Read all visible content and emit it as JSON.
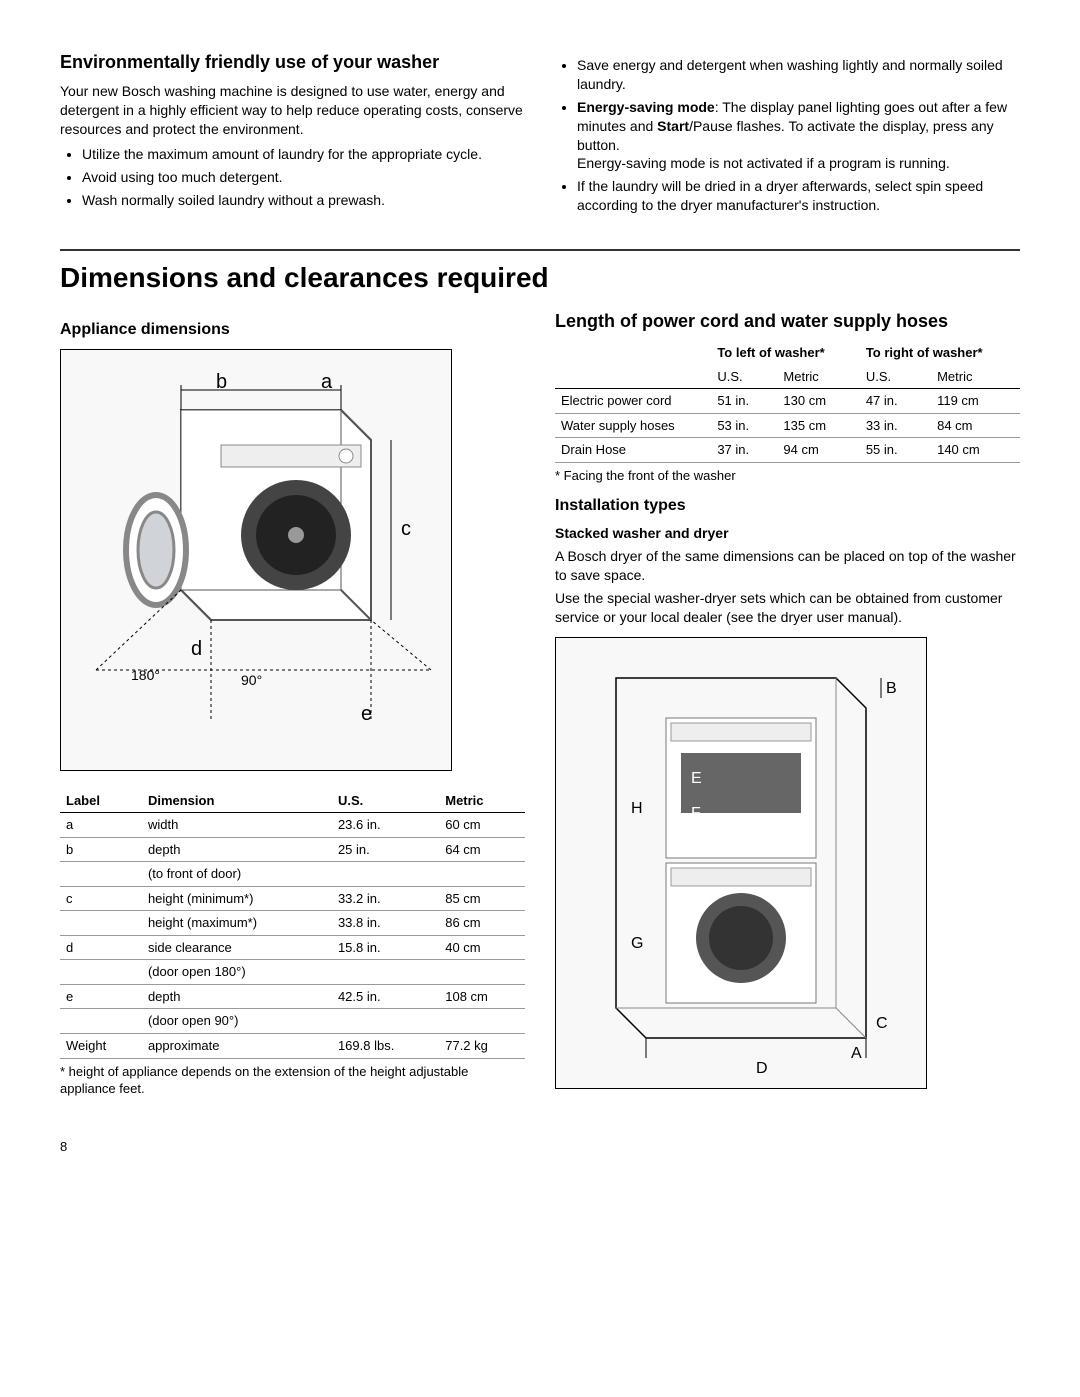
{
  "intro": {
    "heading": "Environmentally friendly use of your washer",
    "para": "Your new Bosch washing machine is designed to use water, energy and detergent in a highly efficient way to help reduce operating costs, conserve resources and protect the environment.",
    "bullets": [
      "Utilize the maximum amount of laundry for the appropriate cycle.",
      "Avoid using too much detergent.",
      "Wash normally soiled laundry without a prewash."
    ]
  },
  "intro_right": {
    "b1": "Save energy and detergent when washing lightly and normally soiled laundry.",
    "b2a": "Energy-saving mode",
    "b2b": ": The display panel lighting goes out after a few minutes and ",
    "b2c": "Start",
    "b2d": "/Pause flashes. To activate the display, press any button.",
    "b2e": "Energy-saving mode is not activated if a program is running.",
    "b3": "If the laundry will be dried in a dryer afterwards, select spin speed according to the dryer manufacturer's instruction."
  },
  "main_heading": "Dimensions and clearances required",
  "appliance": {
    "heading": "Appliance dimensions",
    "labels": {
      "a": "a",
      "b": "b",
      "c": "c",
      "d": "d",
      "e": "e",
      "a180": "180°",
      "a90": "90°"
    }
  },
  "dims_table": {
    "columns": [
      "Label",
      "Dimension",
      "U.S.",
      "Metric"
    ],
    "rows": [
      [
        "a",
        "width",
        "23.6 in.",
        "60 cm"
      ],
      [
        "b",
        "depth",
        "25 in.",
        "64 cm"
      ],
      [
        "",
        "(to front of door)",
        "",
        ""
      ],
      [
        "c",
        "height (minimum*)",
        "33.2 in.",
        "85 cm"
      ],
      [
        "",
        "height (maximum*)",
        "33.8 in.",
        "86 cm"
      ],
      [
        "d",
        "side clearance",
        "15.8 in.",
        "40 cm"
      ],
      [
        "",
        "(door open 180°)",
        "",
        ""
      ],
      [
        "e",
        "depth",
        "42.5 in.",
        "108 cm"
      ],
      [
        "",
        "(door open 90°)",
        "",
        ""
      ],
      [
        "Weight",
        "approximate",
        "169.8 lbs.",
        "77.2 kg"
      ]
    ],
    "note": "* height of appliance depends on the extension of the height adjustable appliance feet."
  },
  "cord": {
    "heading": "Length of power cord and water supply hoses",
    "group_left": "To left of washer*",
    "group_right": "To right of washer*",
    "sub": [
      "U.S.",
      "Metric",
      "U.S.",
      "Metric"
    ],
    "rows": [
      [
        "Electric power cord",
        "51 in.",
        "130 cm",
        "47 in.",
        "119 cm"
      ],
      [
        "Water supply hoses",
        "53 in.",
        "135 cm",
        "33 in.",
        "84 cm"
      ],
      [
        "Drain Hose",
        "37 in.",
        "94 cm",
        "55 in.",
        "140 cm"
      ]
    ],
    "note": "* Facing the front of the washer"
  },
  "install": {
    "heading": "Installation types",
    "sub": "Stacked washer and dryer",
    "p1": "A Bosch dryer of the same dimensions can be placed on top of the washer to save space.",
    "p2": "Use the special washer-dryer sets which can be obtained from customer service or your local dealer (see the dryer user manual).",
    "labels": {
      "A": "A",
      "B": "B",
      "C": "C",
      "D": "D",
      "E": "E",
      "F": "F",
      "G": "G",
      "H": "H"
    }
  },
  "page": "8"
}
